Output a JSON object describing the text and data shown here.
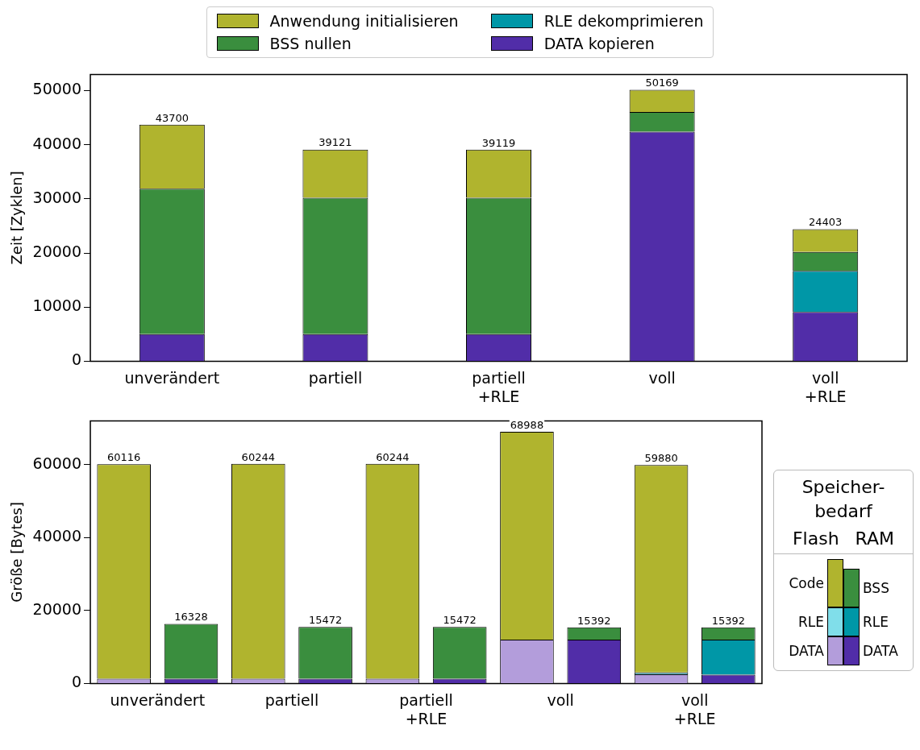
{
  "chart_data": [
    {
      "type": "bar",
      "stacked": true,
      "ylabel": "Zeit [Zyklen]",
      "categories": [
        "unverändert",
        "partiell",
        "partiell\n+RLE",
        "voll",
        "voll\n+RLE"
      ],
      "ylim": [
        0,
        53000
      ],
      "yticks": [
        0,
        10000,
        20000,
        30000,
        40000,
        50000
      ],
      "grid": false,
      "legend": "top",
      "series": [
        {
          "name": "DATA kopieren",
          "color": "#512da8",
          "values": [
            5000,
            5000,
            5000,
            42400,
            9100
          ]
        },
        {
          "name": "RLE dekomprimieren",
          "color": "#0097a7",
          "values": [
            null,
            null,
            null,
            null,
            7600
          ]
        },
        {
          "name": "BSS nullen",
          "color": "#3a8e3e",
          "values": [
            26900,
            25200,
            25200,
            3650,
            3500
          ]
        },
        {
          "name": "Anwendung initialisieren",
          "color": "#b0b42e",
          "values": [
            11800,
            8921,
            8919,
            4119,
            4203
          ]
        }
      ],
      "totals": [
        "43700",
        "39121",
        "39119",
        "50169",
        "24403"
      ]
    },
    {
      "type": "bar",
      "stacked": true,
      "ylabel": "Größe [Bytes]",
      "categories": [
        "unverändert",
        null,
        "partiell",
        null,
        "partiell\n+RLE",
        null,
        "voll",
        null,
        "voll\n+RLE",
        null
      ],
      "ylim": [
        0,
        72000
      ],
      "yticks": [
        0,
        20000,
        40000,
        60000
      ],
      "grid": false,
      "legend": "right",
      "legend_title": "Speicher-bedarf",
      "annotations": [
        "Flash",
        "RAM"
      ],
      "series": [
        {
          "name": "DATA",
          "color": "#b39ddb",
          "colors": [
            "#b39ddb",
            "#512da8",
            "#b39ddb",
            "#512da8",
            "#b39ddb",
            "#512da8",
            "#b39ddb",
            "#512da8",
            "#b39ddb",
            "#512da8"
          ],
          "values": [
            1300,
            1300,
            1300,
            1300,
            1300,
            1300,
            12000,
            12000,
            2500,
            2400
          ]
        },
        {
          "name": "RLE",
          "color": "#80deea",
          "colors": [
            "#80deea",
            "#0097a7",
            "#80deea",
            "#0097a7",
            "#80deea",
            "#0097a7",
            "#80deea",
            "#0097a7",
            "#80deea",
            "#0097a7"
          ],
          "values": [
            null,
            null,
            null,
            null,
            null,
            null,
            null,
            null,
            500,
            9600
          ]
        },
        {
          "name": "Code",
          "color": "#b0b42e",
          "values": [
            58816,
            null,
            58944,
            null,
            58944,
            null,
            56988,
            null,
            56880,
            null
          ]
        },
        {
          "name": "BSS",
          "color": "#3a8e3e",
          "values": [
            null,
            15028,
            null,
            14172,
            null,
            14172,
            null,
            3392,
            null,
            3392
          ]
        }
      ],
      "totals": [
        "60116",
        "16328",
        "60244",
        "15472",
        "60244",
        "15472",
        "68988",
        "15392",
        "59880",
        "15392"
      ]
    }
  ]
}
